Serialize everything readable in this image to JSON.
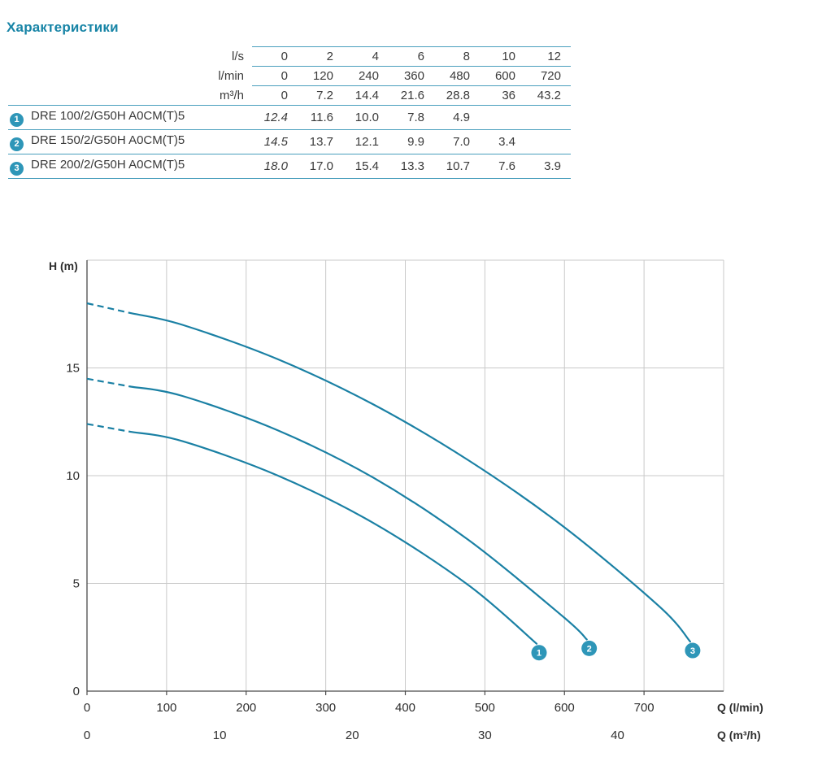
{
  "title": "Характеристики",
  "colors": {
    "accent": "#1784a6",
    "badge": "#2e96b8",
    "table_line": "#4a9fbd",
    "curve": "#1a80a4",
    "grid": "#c9c9c9",
    "axis": "#4a4a4a",
    "text": "#2e2e2e"
  },
  "table": {
    "unit_rows": [
      {
        "unit": "l/s",
        "values": [
          "0",
          "2",
          "4",
          "6",
          "8",
          "10",
          "12"
        ]
      },
      {
        "unit": "l/min",
        "values": [
          "0",
          "120",
          "240",
          "360",
          "480",
          "600",
          "720"
        ]
      },
      {
        "unit": "m³/h",
        "values": [
          "0",
          "7.2",
          "14.4",
          "21.6",
          "28.8",
          "36",
          "43.2"
        ]
      }
    ],
    "rows": [
      {
        "badge": "1",
        "model": "DRE 100/2/G50H A0CM(T)5",
        "values": [
          "12.4",
          "11.6",
          "10.0",
          "7.8",
          "4.9",
          "",
          ""
        ]
      },
      {
        "badge": "2",
        "model": "DRE 150/2/G50H A0CM(T)5",
        "values": [
          "14.5",
          "13.7",
          "12.1",
          "9.9",
          "7.0",
          "3.4",
          ""
        ]
      },
      {
        "badge": "3",
        "model": "DRE 200/2/G50H A0CM(T)5",
        "values": [
          "18.0",
          "17.0",
          "15.4",
          "13.3",
          "10.7",
          "7.6",
          "3.9"
        ]
      }
    ]
  },
  "chart_data": {
    "type": "line",
    "title": "",
    "ylabel": "H (m)",
    "xlabel": "Q (l/min)",
    "xlabel2": "Q (m³/h)",
    "xlim": [
      0,
      800
    ],
    "ylim": [
      0,
      20
    ],
    "x_ticks_lmin": [
      0,
      100,
      200,
      300,
      400,
      500,
      600,
      700
    ],
    "x_ticks_m3h": [
      0,
      10,
      20,
      30,
      40
    ],
    "y_ticks": [
      0,
      5,
      10,
      15
    ],
    "grid": true,
    "dashed_until_q": 55,
    "series": [
      {
        "name": "1",
        "points": [
          [
            0,
            12.4
          ],
          [
            120,
            11.6
          ],
          [
            240,
            10.0
          ],
          [
            360,
            7.8
          ],
          [
            480,
            4.9
          ],
          [
            565,
            2.2
          ]
        ]
      },
      {
        "name": "2",
        "points": [
          [
            0,
            14.5
          ],
          [
            120,
            13.7
          ],
          [
            240,
            12.1
          ],
          [
            360,
            9.9
          ],
          [
            480,
            7.0
          ],
          [
            600,
            3.4
          ],
          [
            628,
            2.4
          ]
        ]
      },
      {
        "name": "3",
        "points": [
          [
            0,
            18.0
          ],
          [
            120,
            17.0
          ],
          [
            240,
            15.4
          ],
          [
            360,
            13.3
          ],
          [
            480,
            10.7
          ],
          [
            600,
            7.6
          ],
          [
            720,
            3.9
          ],
          [
            758,
            2.3
          ]
        ]
      }
    ]
  }
}
